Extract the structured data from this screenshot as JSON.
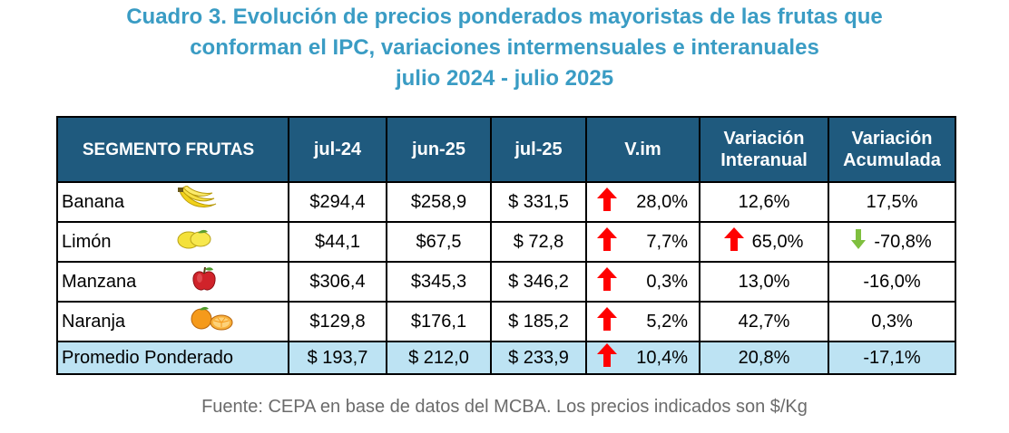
{
  "title": {
    "line1": "Cuadro 3. Evolución de precios ponderados mayoristas de las frutas que",
    "line2": "conforman el IPC, variaciones intermensuales e interanuales",
    "line3": "julio 2024 - julio 2025"
  },
  "table": {
    "headers": {
      "segment": "SEGMENTO FRUTAS",
      "jul24": "jul-24",
      "jun25": "jun-25",
      "jul25": "jul-25",
      "vim": "V.im",
      "interanual_line1": "Variación",
      "interanual_line2": "Interanual",
      "acumulada_line1": "Variación",
      "acumulada_line2": "Acumulada"
    },
    "rows": [
      {
        "segment": "Banana",
        "icon": "banana-icon",
        "jul24": "$294,4",
        "jun25": "$258,9",
        "jul25": "$ 331,5",
        "vim": "28,0%",
        "vim_arrow": "up-red",
        "interanual": "12,6%",
        "acumulada": "17,5%"
      },
      {
        "segment": "Limón",
        "icon": "lemon-icon",
        "jul24": "$44,1",
        "jun25": "$67,5",
        "jul25": "$ 72,8",
        "vim": "7,7%",
        "vim_arrow": "up-red",
        "interanual": "65,0%",
        "interanual_arrow": "up-red",
        "acumulada": "-70,8%",
        "acumulada_arrow": "down-green"
      },
      {
        "segment": "Manzana",
        "icon": "apple-icon",
        "jul24": "$306,4",
        "jun25": "$345,3",
        "jul25": "$ 346,2",
        "vim": "0,3%",
        "vim_arrow": "up-red",
        "interanual": "13,0%",
        "acumulada": "-16,0%"
      },
      {
        "segment": "Naranja",
        "icon": "orange-icon",
        "jul24": "$129,8",
        "jun25": "$176,1",
        "jul25": "$ 185,2",
        "vim": "5,2%",
        "vim_arrow": "up-red",
        "interanual": "42,7%",
        "acumulada": "0,3%"
      }
    ],
    "average": {
      "segment": "Promedio Ponderado",
      "jul24": "$ 193,7",
      "jun25": "$ 212,0",
      "jul25": "$ 233,9",
      "vim": "10,4%",
      "vim_arrow": "up-red",
      "interanual": "20,8%",
      "acumulada": "-17,1%"
    }
  },
  "colors": {
    "title": "#3A9CC4",
    "header_bg": "#1F5A7E",
    "avg_row_bg": "#BDE3F3",
    "arrow_up": "#FF0000",
    "arrow_down": "#7FBF3F"
  },
  "source": "Fuente: CEPA en base de datos del MCBA. Los precios indicados son $/Kg"
}
